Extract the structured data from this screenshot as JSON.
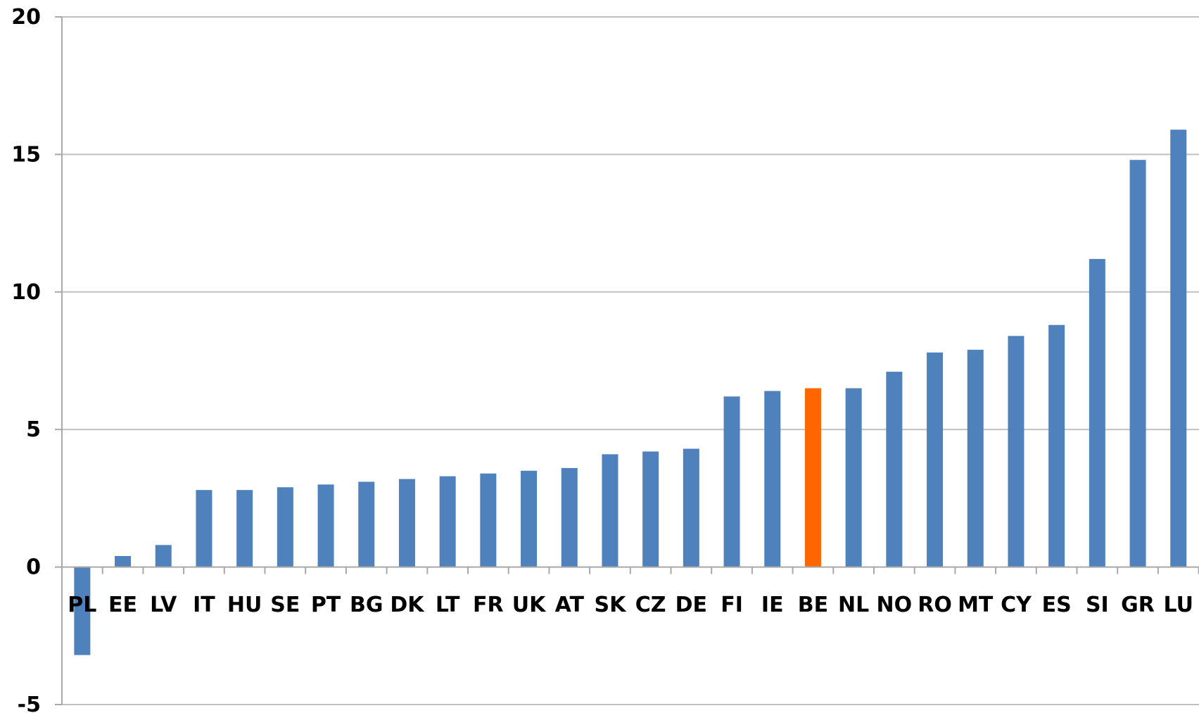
{
  "chart_data": {
    "type": "bar",
    "categories": [
      "PL",
      "EE",
      "LV",
      "IT",
      "HU",
      "SE",
      "PT",
      "BG",
      "DK",
      "LT",
      "FR",
      "UK",
      "AT",
      "SK",
      "CZ",
      "DE",
      "FI",
      "IE",
      "BE",
      "NL",
      "NO",
      "RO",
      "MT",
      "CY",
      "ES",
      "SI",
      "GR",
      "LU"
    ],
    "values": [
      -3.2,
      0.4,
      0.8,
      2.8,
      2.8,
      2.9,
      3.0,
      3.1,
      3.2,
      3.3,
      3.4,
      3.5,
      3.6,
      4.1,
      4.2,
      4.3,
      6.2,
      6.4,
      6.5,
      6.5,
      7.1,
      7.8,
      7.9,
      8.4,
      8.8,
      11.2,
      14.8,
      15.9
    ],
    "highlight_category": "BE",
    "bar_color": "#4f81bd",
    "highlight_color": "#ff6600",
    "ylim": [
      -5,
      20
    ],
    "yticks": [
      -5,
      0,
      5,
      10,
      15,
      20
    ],
    "ytick_labels": [
      "-5",
      "0",
      "5",
      "10",
      "15",
      "20"
    ],
    "title": "",
    "xlabel": "",
    "ylabel": "",
    "grid": true,
    "legend": "none"
  }
}
